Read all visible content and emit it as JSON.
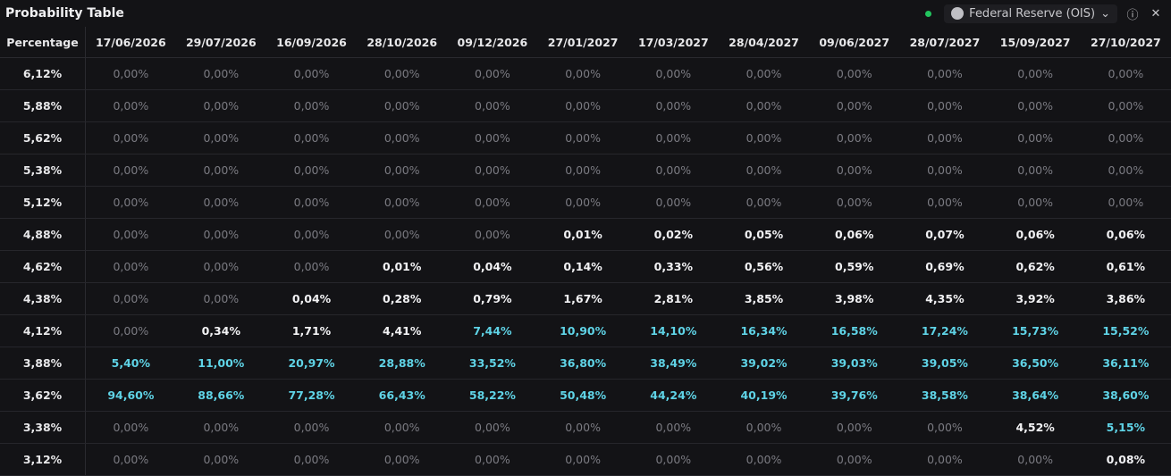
{
  "header": {
    "title": "Probability Table",
    "source": "Federal Reserve (OIS)"
  },
  "table": {
    "columns": [
      "Percentage",
      "17/06/2026",
      "29/07/2026",
      "16/09/2026",
      "28/10/2026",
      "09/12/2026",
      "27/01/2027",
      "17/03/2027",
      "28/04/2027",
      "09/06/2027",
      "28/07/2027",
      "15/09/2027",
      "27/10/2027"
    ],
    "rows": [
      [
        "6,12%",
        "0,00%",
        "0,00%",
        "0,00%",
        "0,00%",
        "0,00%",
        "0,00%",
        "0,00%",
        "0,00%",
        "0,00%",
        "0,00%",
        "0,00%",
        "0,00%"
      ],
      [
        "5,88%",
        "0,00%",
        "0,00%",
        "0,00%",
        "0,00%",
        "0,00%",
        "0,00%",
        "0,00%",
        "0,00%",
        "0,00%",
        "0,00%",
        "0,00%",
        "0,00%"
      ],
      [
        "5,62%",
        "0,00%",
        "0,00%",
        "0,00%",
        "0,00%",
        "0,00%",
        "0,00%",
        "0,00%",
        "0,00%",
        "0,00%",
        "0,00%",
        "0,00%",
        "0,00%"
      ],
      [
        "5,38%",
        "0,00%",
        "0,00%",
        "0,00%",
        "0,00%",
        "0,00%",
        "0,00%",
        "0,00%",
        "0,00%",
        "0,00%",
        "0,00%",
        "0,00%",
        "0,00%"
      ],
      [
        "5,12%",
        "0,00%",
        "0,00%",
        "0,00%",
        "0,00%",
        "0,00%",
        "0,00%",
        "0,00%",
        "0,00%",
        "0,00%",
        "0,00%",
        "0,00%",
        "0,00%"
      ],
      [
        "4,88%",
        "0,00%",
        "0,00%",
        "0,00%",
        "0,00%",
        "0,00%",
        "0,01%",
        "0,02%",
        "0,05%",
        "0,06%",
        "0,07%",
        "0,06%",
        "0,06%"
      ],
      [
        "4,62%",
        "0,00%",
        "0,00%",
        "0,00%",
        "0,01%",
        "0,04%",
        "0,14%",
        "0,33%",
        "0,56%",
        "0,59%",
        "0,69%",
        "0,62%",
        "0,61%"
      ],
      [
        "4,38%",
        "0,00%",
        "0,00%",
        "0,04%",
        "0,28%",
        "0,79%",
        "1,67%",
        "2,81%",
        "3,85%",
        "3,98%",
        "4,35%",
        "3,92%",
        "3,86%"
      ],
      [
        "4,12%",
        "0,00%",
        "0,34%",
        "1,71%",
        "4,41%",
        "7,44%",
        "10,90%",
        "14,10%",
        "16,34%",
        "16,58%",
        "17,24%",
        "15,73%",
        "15,52%"
      ],
      [
        "3,88%",
        "5,40%",
        "11,00%",
        "20,97%",
        "28,88%",
        "33,52%",
        "36,80%",
        "38,49%",
        "39,02%",
        "39,03%",
        "39,05%",
        "36,50%",
        "36,11%"
      ],
      [
        "3,62%",
        "94,60%",
        "88,66%",
        "77,28%",
        "66,43%",
        "58,22%",
        "50,48%",
        "44,24%",
        "40,19%",
        "39,76%",
        "38,58%",
        "38,64%",
        "38,60%"
      ],
      [
        "3,38%",
        "0,00%",
        "0,00%",
        "0,00%",
        "0,00%",
        "0,00%",
        "0,00%",
        "0,00%",
        "0,00%",
        "0,00%",
        "0,00%",
        "4,52%",
        "5,15%"
      ],
      [
        "3,12%",
        "0,00%",
        "0,00%",
        "0,00%",
        "0,00%",
        "0,00%",
        "0,00%",
        "0,00%",
        "0,00%",
        "0,00%",
        "0,00%",
        "0,00%",
        "0,08%"
      ]
    ]
  }
}
